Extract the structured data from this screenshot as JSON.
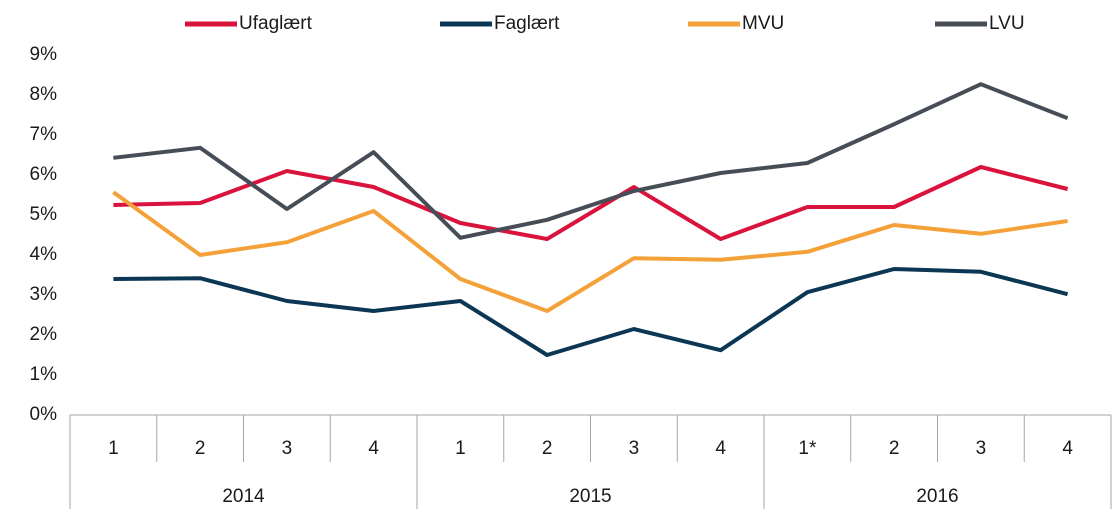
{
  "chart_data": {
    "type": "line",
    "categories": [
      "1",
      "2",
      "3",
      "4",
      "1",
      "2",
      "3",
      "4",
      "1*",
      "2",
      "3",
      "4"
    ],
    "category_groups": [
      "2014",
      "2015",
      "2016"
    ],
    "series": [
      {
        "name": "Ufaglært",
        "color": "#d9133c",
        "values": [
          5.25,
          5.3,
          6.1,
          5.7,
          4.8,
          4.4,
          5.7,
          4.4,
          5.2,
          5.2,
          6.2,
          5.65
        ]
      },
      {
        "name": "Faglært",
        "color": "#0b3654",
        "values": [
          3.4,
          3.42,
          2.85,
          2.6,
          2.85,
          1.5,
          2.15,
          1.62,
          3.07,
          3.65,
          3.58,
          3.02
        ]
      },
      {
        "name": "MVU",
        "color": "#f4a13a",
        "values": [
          5.57,
          4.0,
          4.32,
          5.1,
          3.4,
          2.6,
          3.92,
          3.88,
          4.08,
          4.75,
          4.53,
          4.85
        ]
      },
      {
        "name": "LVU",
        "color": "#474d57",
        "values": [
          6.43,
          6.68,
          5.15,
          6.57,
          4.43,
          4.88,
          5.6,
          6.05,
          6.3,
          7.27,
          8.27,
          7.42
        ]
      }
    ],
    "ylim": [
      0,
      9
    ],
    "yticks": [
      {
        "value": 0,
        "label": "0%"
      },
      {
        "value": 1,
        "label": "1%"
      },
      {
        "value": 2,
        "label": "2%"
      },
      {
        "value": 3,
        "label": "3%"
      },
      {
        "value": 4,
        "label": "4%"
      },
      {
        "value": 5,
        "label": "5%"
      },
      {
        "value": 6,
        "label": "6%"
      },
      {
        "value": 7,
        "label": "7%"
      },
      {
        "value": 8,
        "label": "8%"
      },
      {
        "value": 9,
        "label": "9%"
      }
    ],
    "legend": "top"
  }
}
